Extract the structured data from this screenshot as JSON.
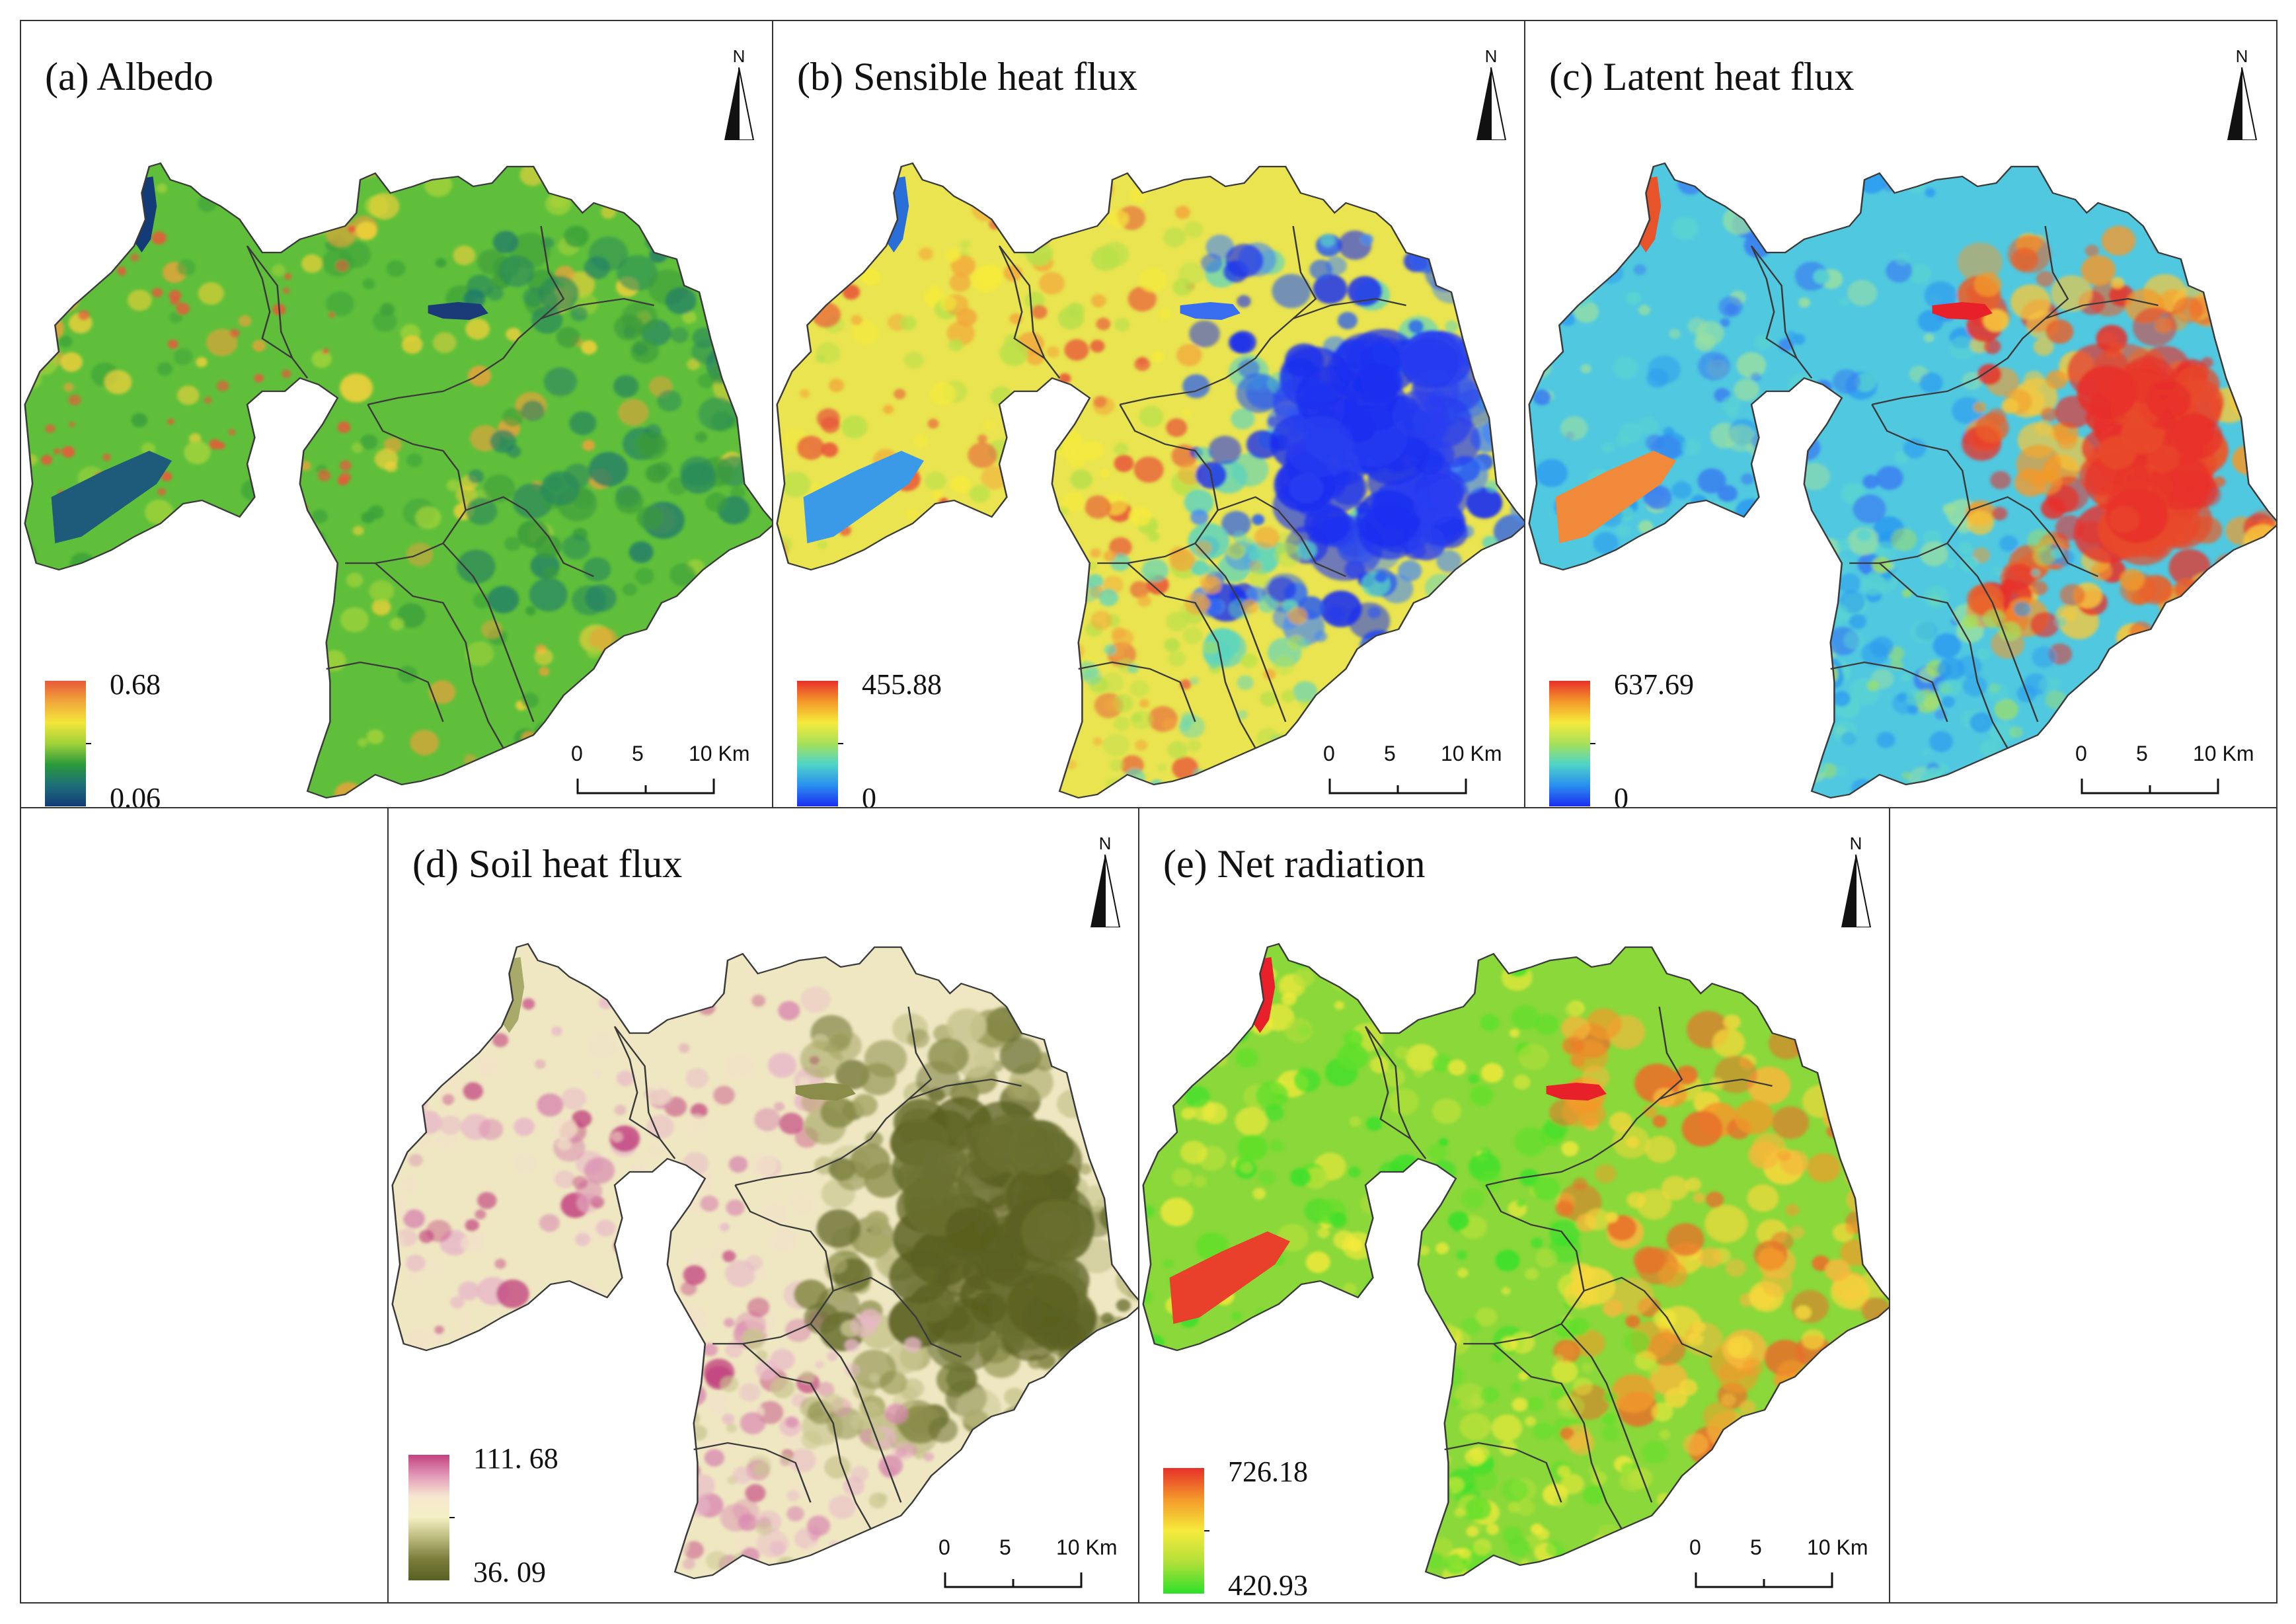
{
  "figure": {
    "panels": [
      {
        "id": "a",
        "title": "(a) Albedo",
        "legend": {
          "max": "0.68",
          "min": "0.06",
          "ramp": [
            "#e8593a",
            "#f0a83a",
            "#f3e63a",
            "#9fd23a",
            "#2a9a3a",
            "#1e6e7a",
            "#123b78"
          ]
        },
        "scheme": "albedo"
      },
      {
        "id": "b",
        "title": "(b) Sensible heat flux",
        "legend": {
          "max": "455.88",
          "min": "0",
          "ramp": [
            "#e8302a",
            "#f39a2a",
            "#f6ea3c",
            "#a6e05a",
            "#4fd4c8",
            "#2a8ef0",
            "#1a2ef0"
          ]
        },
        "scheme": "sensible"
      },
      {
        "id": "c",
        "title": "(c) Latent heat flux",
        "legend": {
          "max": "637.69",
          "min": "0",
          "ramp": [
            "#e8302a",
            "#f39a2a",
            "#f6ea3c",
            "#a6e05a",
            "#4fd4c8",
            "#2a8ef0",
            "#1a2ef0"
          ]
        },
        "scheme": "latent"
      },
      {
        "id": "d",
        "title": "(d) Soil heat flux",
        "legend": {
          "max": "111. 68",
          "min": "36. 09",
          "ramp": [
            "#c2417f",
            "#e29ab8",
            "#f6e8d0",
            "#f4f0c4",
            "#b9b87a",
            "#7a7d3a",
            "#5a6020"
          ]
        },
        "scheme": "soil"
      },
      {
        "id": "e",
        "title": "(e) Net radiation",
        "legend": {
          "max": "726.18",
          "min": "420.93",
          "ramp": [
            "#e8302a",
            "#f39a2a",
            "#f6ea3c",
            "#b2e03a",
            "#2ee02a"
          ]
        },
        "scheme": "netrad"
      }
    ],
    "north_label": "N",
    "scalebar": {
      "labels": [
        "0",
        "5",
        "10 Km"
      ]
    }
  }
}
